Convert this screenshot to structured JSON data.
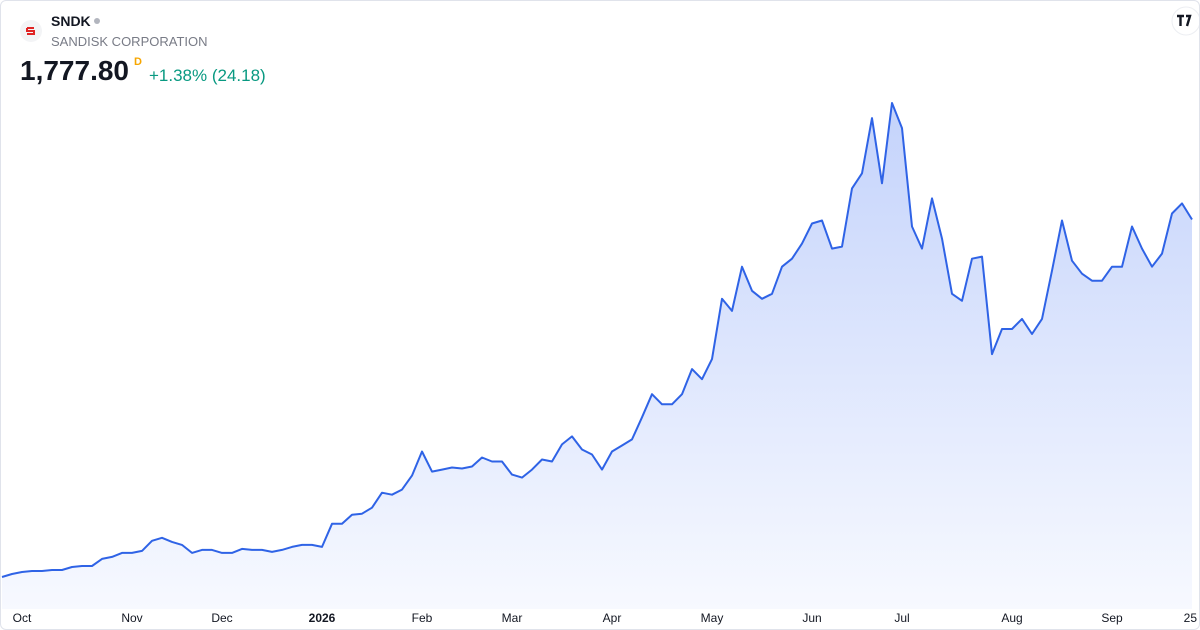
{
  "header": {
    "symbol": "SNDK",
    "name": "SANDISK CORPORATION",
    "price": "1,777.80",
    "price_suffix": "D",
    "change": "+1.38% (24.18)"
  },
  "chart_data": {
    "type": "area",
    "color": "#2f63e6",
    "categories": [
      null,
      null,
      "Oct",
      null,
      null,
      null,
      null,
      null,
      null,
      null,
      null,
      null,
      null,
      "Nov",
      null,
      null,
      null,
      null,
      null,
      null,
      null,
      null,
      "Dec",
      null,
      null,
      null,
      null,
      null,
      null,
      null,
      null,
      null,
      "2026",
      null,
      null,
      null,
      null,
      null,
      null,
      null,
      null,
      null,
      "Feb",
      null,
      null,
      null,
      null,
      null,
      null,
      null,
      null,
      "Mar",
      null,
      null,
      null,
      null,
      null,
      null,
      null,
      null,
      null,
      "Apr",
      null,
      null,
      null,
      null,
      null,
      null,
      null,
      null,
      null,
      "May",
      null,
      null,
      null,
      null,
      null,
      null,
      null,
      null,
      null,
      "Jun",
      null,
      null,
      null,
      null,
      null,
      null,
      null,
      null,
      "Jul",
      null,
      null,
      null,
      null,
      null,
      null,
      null,
      null,
      null,
      null,
      "Aug",
      null,
      null,
      null,
      null,
      null,
      null,
      null,
      null,
      null,
      "Sep",
      null,
      null,
      null,
      null,
      null,
      null,
      null,
      "25"
    ],
    "values": [
      230.4,
      243.4,
      252.1,
      256.5,
      256.5,
      260.8,
      260.8,
      273.9,
      278.2,
      278.2,
      308.6,
      317.3,
      334.7,
      334.7,
      343.4,
      386.9,
      399.9,
      382.5,
      369.5,
      334.7,
      347.8,
      347.8,
      334.7,
      334.7,
      352.1,
      347.8,
      347.8,
      339.1,
      347.8,
      360.8,
      369.5,
      369.5,
      360.8,
      460.8,
      460.8,
      499.9,
      504.3,
      530.3,
      595.5,
      586.8,
      608.6,
      669.4,
      773.8,
      686.8,
      695.5,
      704.2,
      699.9,
      708.6,
      747.7,
      730.3,
      730.3,
      673.8,
      660.7,
      695.5,
      739.0,
      730.3,
      804.2,
      839.0,
      782.5,
      760.7,
      695.5,
      773.8,
      799.8,
      825.9,
      921.6,
      1021.5,
      978.1,
      978.1,
      1021.5,
      1130.2,
      1086.8,
      1173.7,
      1434.5,
      1382.3,
      1573.6,
      1469.3,
      1434.5,
      1456.2,
      1573.6,
      1608.4,
      1673.6,
      1760.5,
      1773.6,
      1651.9,
      1660.6,
      1912.7,
      1977.9,
      2217.0,
      1934.4,
      2282.2,
      2173.5,
      1747.5,
      1651.9,
      1869.2,
      1695.3,
      1456.2,
      1425.8,
      1608.4,
      1617.1,
      1195.4,
      1304.1,
      1304.1,
      1347.6,
      1282.4,
      1347.6,
      1556.2,
      1773.6,
      1599.7,
      1543.2,
      1512.8,
      1512.8,
      1573.6,
      1573.6,
      1747.5,
      1651.9,
      1573.6,
      1630.1,
      1804.0,
      1847.5,
      1777.8
    ]
  }
}
